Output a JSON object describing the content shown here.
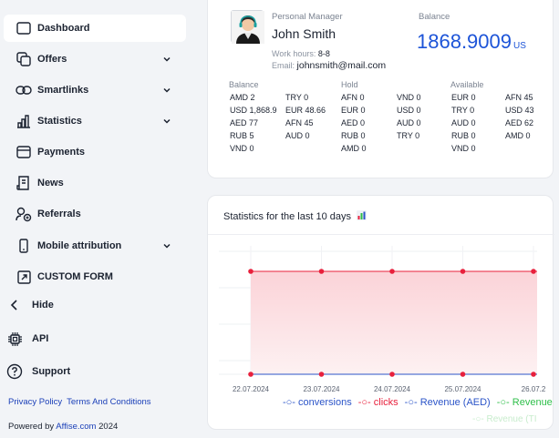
{
  "sidebar": {
    "items": [
      {
        "label": "Dashboard"
      },
      {
        "label": "Offers"
      },
      {
        "label": "Smartlinks"
      },
      {
        "label": "Statistics"
      },
      {
        "label": "Payments"
      },
      {
        "label": "News"
      },
      {
        "label": "Referrals"
      },
      {
        "label": "Mobile attribution"
      },
      {
        "label": "CUSTOM FORM"
      }
    ],
    "hide_label": "Hide",
    "api_label": "API",
    "support_label": "Support",
    "privacy_label": "Privacy Policy",
    "terms_label": "Terms And Conditions",
    "powered_prefix": "Powered by ",
    "powered_brand": "Affise.com",
    "powered_year": " 2024"
  },
  "manager": {
    "section_label": "Personal Manager",
    "name": "John Smith",
    "hours_label": "Work hours: ",
    "hours_value": "8-8",
    "email_label": "Email: ",
    "email_value": "johnsmith@mail.com"
  },
  "balance": {
    "label": "Balance",
    "value": "1868.9009",
    "currency": "US"
  },
  "balances_table": {
    "headers": [
      "Balance",
      "Hold",
      "Available"
    ],
    "balance_col1": [
      "AMD 2",
      "USD 1,868.9",
      "AED 77",
      "RUB 5",
      "VND 0"
    ],
    "balance_col2": [
      "TRY 0",
      "EUR 48.66",
      "AFN 45",
      "AUD 0"
    ],
    "hold_col1": [
      "AFN 0",
      "EUR 0",
      "AED 0",
      "RUB 0",
      "AMD 0"
    ],
    "hold_col2": [
      "VND 0",
      "USD 0",
      "AUD 0",
      "TRY 0"
    ],
    "avail_col1": [
      "EUR 0",
      "TRY 0",
      "AUD 0",
      "RUB 0",
      "VND 0"
    ],
    "avail_col2": [
      "AFN 45",
      "USD 43",
      "AED 62",
      "AMD 0"
    ]
  },
  "stats": {
    "title": "Statistics for the last 10 days",
    "chart_icon": "bar-chart-emoji"
  },
  "chart_data": {
    "type": "area",
    "x": [
      "22.07.2024",
      "23.07.2024",
      "24.07.2024",
      "25.07.2024",
      "26.07.2"
    ],
    "series": [
      {
        "name": "clicks",
        "color": "#e8203c",
        "values": [
          1,
          1,
          1,
          1,
          1
        ]
      },
      {
        "name": "conversions",
        "color": "#2b54c8",
        "values": [
          0,
          0,
          0,
          0,
          0
        ]
      }
    ],
    "ylim": [
      0,
      1
    ],
    "grid": true
  },
  "legend": {
    "items": [
      {
        "name": "conversions",
        "color": "#2b54c8"
      },
      {
        "name": "clicks",
        "color": "#e8203c"
      },
      {
        "name": "Revenue (AED)",
        "color": "#2b54c8"
      },
      {
        "name": "Revenue",
        "color": "#2fbf4a"
      }
    ],
    "second_row": "Revenue (TI"
  },
  "colors": {
    "accent": "#1d54d8",
    "link": "#1a3fb8",
    "clicks": "#e8203c",
    "conversions": "#2b54c8"
  }
}
